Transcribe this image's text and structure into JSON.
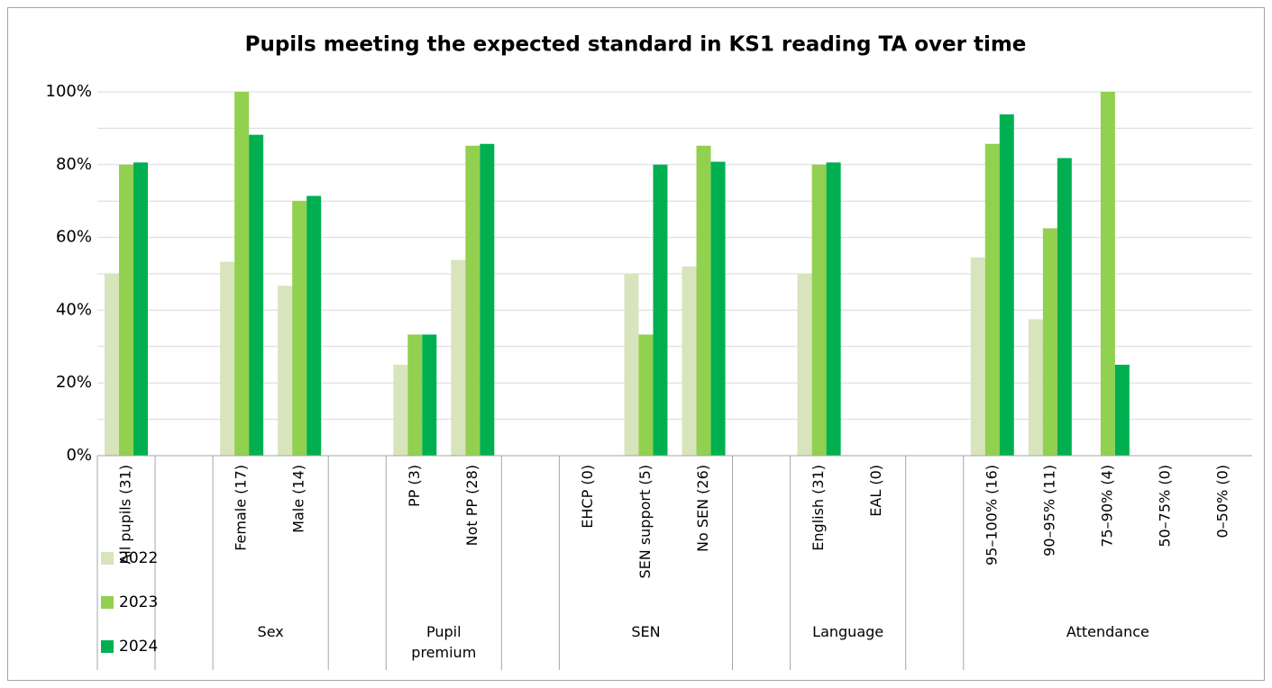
{
  "chart_data": {
    "type": "bar",
    "title": "Pupils meeting the expected standard in KS1 reading TA over time",
    "groups": [
      {
        "name": null,
        "categories": [
          "All pupils (31)"
        ]
      },
      {
        "name": null,
        "categories": [
          null
        ]
      },
      {
        "name": "Sex",
        "categories": [
          "Female (17)",
          "Male (14)"
        ]
      },
      {
        "name": null,
        "categories": [
          null
        ]
      },
      {
        "name": "Pupil premium",
        "categories": [
          "PP (3)",
          "Not PP (28)"
        ]
      },
      {
        "name": null,
        "categories": [
          null
        ]
      },
      {
        "name": "SEN",
        "categories": [
          "EHCP (0)",
          "SEN support (5)",
          "No SEN (26)"
        ]
      },
      {
        "name": null,
        "categories": [
          null
        ]
      },
      {
        "name": "Language",
        "categories": [
          "English (31)",
          "EAL (0)"
        ]
      },
      {
        "name": null,
        "categories": [
          null
        ]
      },
      {
        "name": "Attendance",
        "categories": [
          "95–100% (16)",
          "90–95% (11)",
          "75–90% (4)",
          "50–75% (0)",
          "0–50% (0)"
        ]
      }
    ],
    "series": [
      {
        "name": "2022",
        "color": "#d8e4bc",
        "values": [
          50,
          null,
          53.3,
          46.7,
          null,
          25,
          53.8,
          null,
          null,
          50,
          52,
          null,
          50,
          null,
          null,
          54.5,
          37.5,
          null,
          null,
          null
        ]
      },
      {
        "name": "2023",
        "color": "#92d050",
        "values": [
          80,
          null,
          100,
          70,
          null,
          33.3,
          85.2,
          null,
          null,
          33.3,
          85.2,
          null,
          80,
          null,
          null,
          85.7,
          62.5,
          100,
          null,
          null
        ]
      },
      {
        "name": "2024",
        "color": "#00b050",
        "values": [
          80.6,
          null,
          88.2,
          71.4,
          null,
          33.3,
          85.7,
          null,
          null,
          80,
          80.8,
          null,
          80.6,
          null,
          null,
          93.8,
          81.8,
          25,
          null,
          null
        ]
      }
    ],
    "ylim": [
      0,
      100
    ],
    "yticks": [
      {
        "value": 0,
        "label": "0%"
      },
      {
        "value": 20,
        "label": "20%"
      },
      {
        "value": 40,
        "label": "40%"
      },
      {
        "value": 60,
        "label": "60%"
      },
      {
        "value": 80,
        "label": "80%"
      },
      {
        "value": 100,
        "label": "100%"
      }
    ],
    "minor_yticks": [
      10,
      30,
      50,
      70,
      90
    ],
    "grid": true,
    "legend": "left"
  }
}
